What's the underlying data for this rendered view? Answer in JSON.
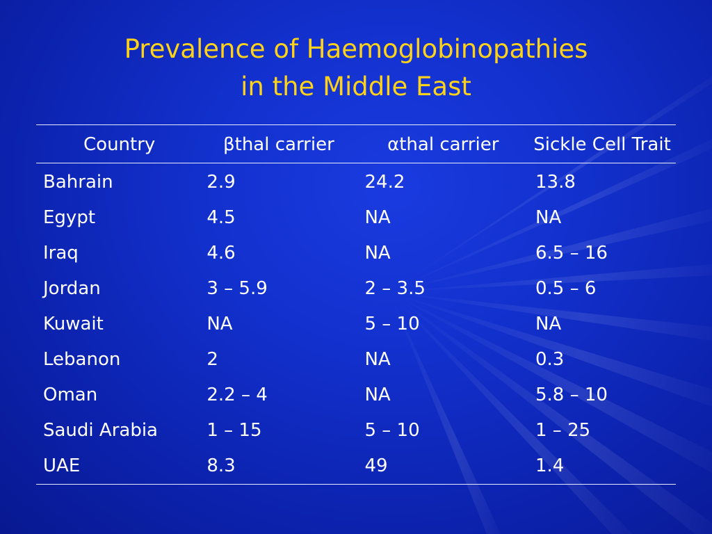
{
  "slide": {
    "title_line1": "Prevalence of Haemoglobinopathies",
    "title_line2": "in the Middle East",
    "colors": {
      "background": "#1230cc",
      "title": "#ffd21a",
      "text": "#ffffff",
      "rule": "#e8ecff"
    }
  },
  "table": {
    "headers": [
      "Country",
      "βthal carrier",
      "αthal carrier",
      "Sickle Cell Trait"
    ],
    "rows": [
      [
        "Bahrain",
        "2.9",
        "24.2",
        "13.8"
      ],
      [
        "Egypt",
        "4.5",
        "NA",
        "NA"
      ],
      [
        "Iraq",
        "4.6",
        "NA",
        "6.5 – 16"
      ],
      [
        "Jordan",
        "3 – 5.9",
        "2 – 3.5",
        "0.5 – 6"
      ],
      [
        "Kuwait",
        "NA",
        "5 – 10",
        "NA"
      ],
      [
        "Lebanon",
        "2",
        "NA",
        "0.3"
      ],
      [
        "Oman",
        "2.2 – 4",
        "NA",
        "5.8 – 10"
      ],
      [
        "Saudi Arabia",
        "1 – 15",
        "5 – 10",
        "1 – 25"
      ],
      [
        "UAE",
        "8.3",
        "49",
        "1.4"
      ]
    ]
  }
}
